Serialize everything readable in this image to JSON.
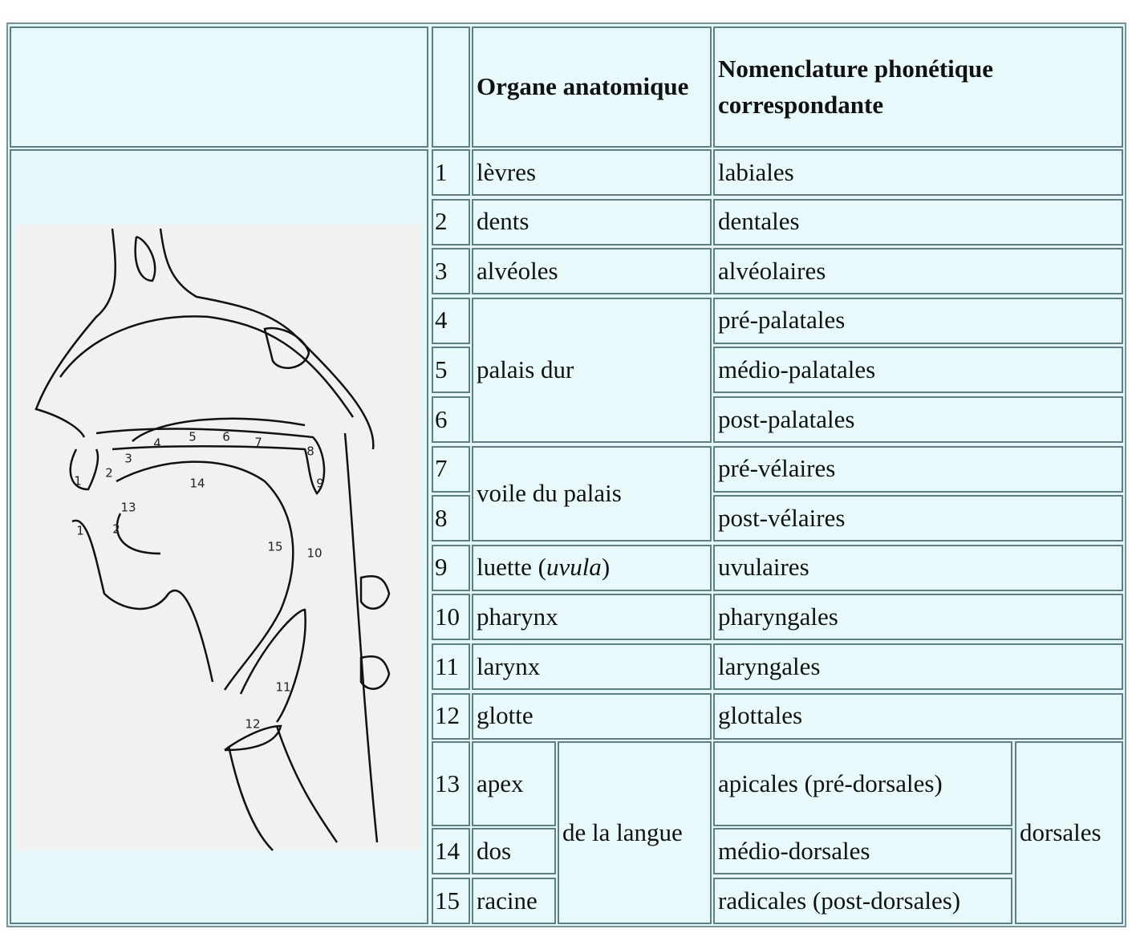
{
  "header": {
    "organ": "Organe anatomique",
    "nomenclature": "Nomenclature phonétique correspondante"
  },
  "numbers": [
    1,
    2,
    3,
    4,
    5,
    6,
    7,
    8,
    9,
    10,
    11,
    12,
    13,
    14,
    15
  ],
  "organs": [
    "lèvres",
    "dents",
    "alvéoles",
    "palais dur",
    "voile du palais",
    [
      "luette (",
      "uvula",
      ")"
    ],
    "pharynx",
    "larynx",
    "glotte",
    "apex",
    "dos",
    "racine",
    "de la langue"
  ],
  "nomenclatures": [
    "labiales",
    "dentales",
    "alvéolaires",
    "pré-palatales",
    "médio-palatales",
    "post-palatales",
    "pré-vélaires",
    "post-vélaires",
    "uvulaires",
    "pharyngales",
    "laryngales",
    "glottales",
    "apicales (pré-dorsales)",
    "médio-dorsales",
    "radicales (post-dorsales)",
    "dorsales"
  ],
  "diagram": {
    "labels": [
      "1",
      "2",
      "3",
      "4",
      "5",
      "6",
      "7",
      "8",
      "9",
      "1",
      "2",
      "13",
      "14",
      "15",
      "10",
      "11",
      "12"
    ]
  }
}
